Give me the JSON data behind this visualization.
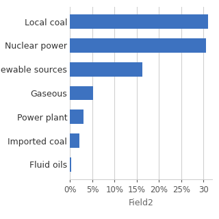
{
  "categories": [
    "Fluid oils",
    "Imported coal",
    "Power plant",
    "Gaseous",
    "Renewable sources",
    "Nuclear power",
    "Local coal"
  ],
  "values": [
    0.002,
    0.021,
    0.03,
    0.051,
    0.162,
    0.305,
    0.31
  ],
  "bar_color": "#3d72c0",
  "xlabel": "Field2",
  "xlim": [
    0,
    0.32
  ],
  "x_ticks": [
    0.0,
    0.05,
    0.1,
    0.15,
    0.2,
    0.25,
    0.3
  ],
  "x_tick_labels": [
    "0%",
    "5%",
    "10%",
    "15%",
    "20%",
    "25%",
    "30"
  ],
  "bar_height": 0.6,
  "figsize": [
    3.2,
    3.2
  ],
  "dpi": 100,
  "background_color": "#ffffff",
  "grid_color": "#d0d0d0",
  "tick_fontsize": 8.5,
  "xlabel_fontsize": 9,
  "ylabel_fontsize": 9
}
